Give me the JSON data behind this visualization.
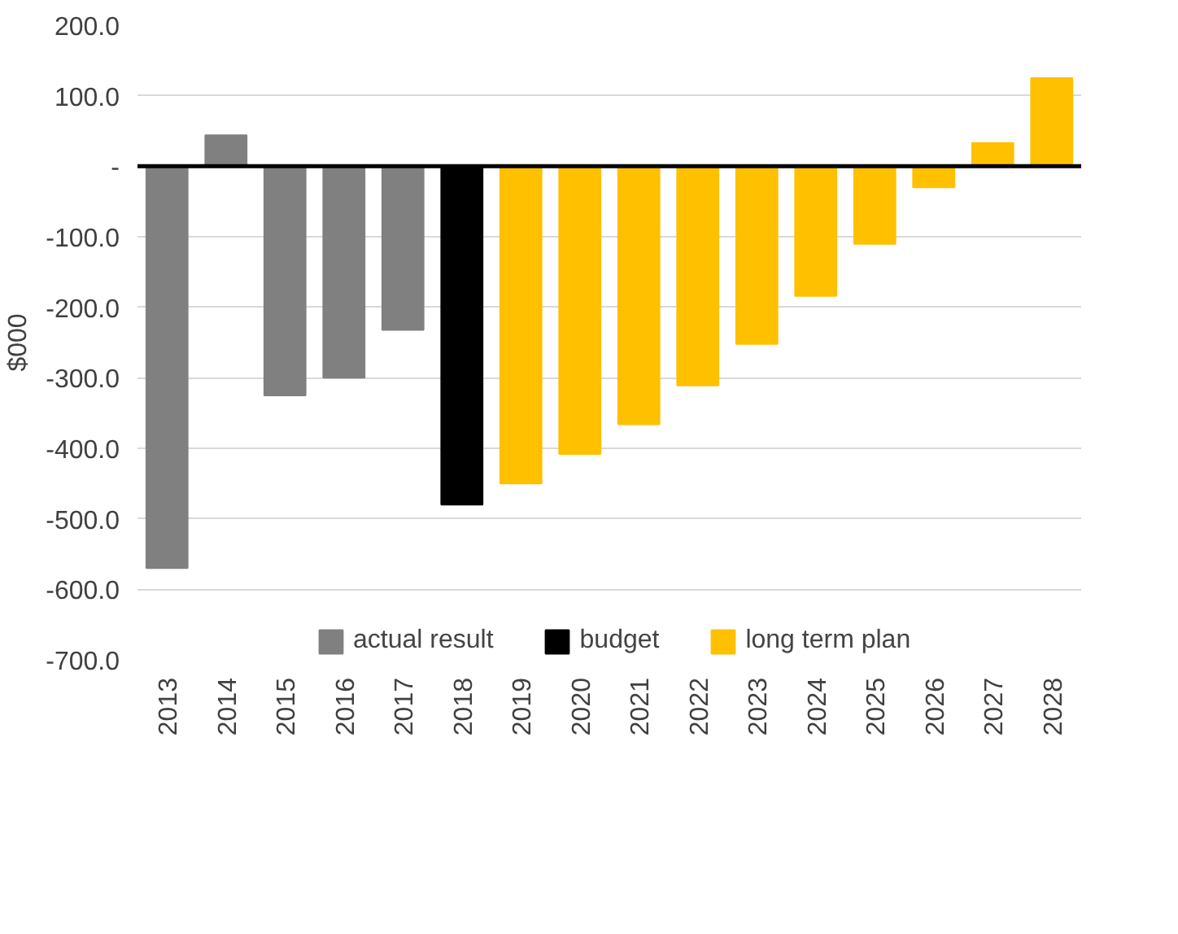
{
  "chart_data": {
    "type": "bar",
    "ylabel": "$000",
    "categories": [
      "2013",
      "2014",
      "2015",
      "2016",
      "2017",
      "2018",
      "2019",
      "2020",
      "2021",
      "2022",
      "2023",
      "2024",
      "2025",
      "2026",
      "2027",
      "2028"
    ],
    "series": [
      {
        "name": "actual result",
        "color": "#808080",
        "values": [
          -570,
          44,
          -325,
          -300,
          -232,
          null,
          null,
          null,
          null,
          null,
          null,
          null,
          null,
          null,
          null,
          null
        ]
      },
      {
        "name": "budget",
        "color": "#000000",
        "values": [
          null,
          null,
          null,
          null,
          null,
          -480,
          null,
          null,
          null,
          null,
          null,
          null,
          null,
          null,
          null,
          null
        ]
      },
      {
        "name": "long term plan",
        "color": "#ffc000",
        "values": [
          null,
          null,
          null,
          null,
          null,
          null,
          -450,
          -408,
          -366,
          -311,
          -252,
          -184,
          -110,
          -30,
          33,
          125
        ]
      }
    ],
    "ylim": [
      -700,
      200
    ],
    "yticks": [
      {
        "value": -700,
        "label": "-700.0"
      },
      {
        "value": -600,
        "label": "-600.0"
      },
      {
        "value": -500,
        "label": "-500.0"
      },
      {
        "value": -400,
        "label": "-400.0"
      },
      {
        "value": -300,
        "label": "-300.0"
      },
      {
        "value": -200,
        "label": "-200.0"
      },
      {
        "value": -100,
        "label": "-100.0"
      },
      {
        "value": 0,
        "label": "-"
      },
      {
        "value": 100,
        "label": "100.0"
      },
      {
        "value": 200,
        "label": "200.0"
      }
    ],
    "ref_lines": [
      {
        "axis": "y",
        "value": 0,
        "color": "#000000"
      }
    ],
    "grid": "y",
    "legend": "bottom"
  }
}
